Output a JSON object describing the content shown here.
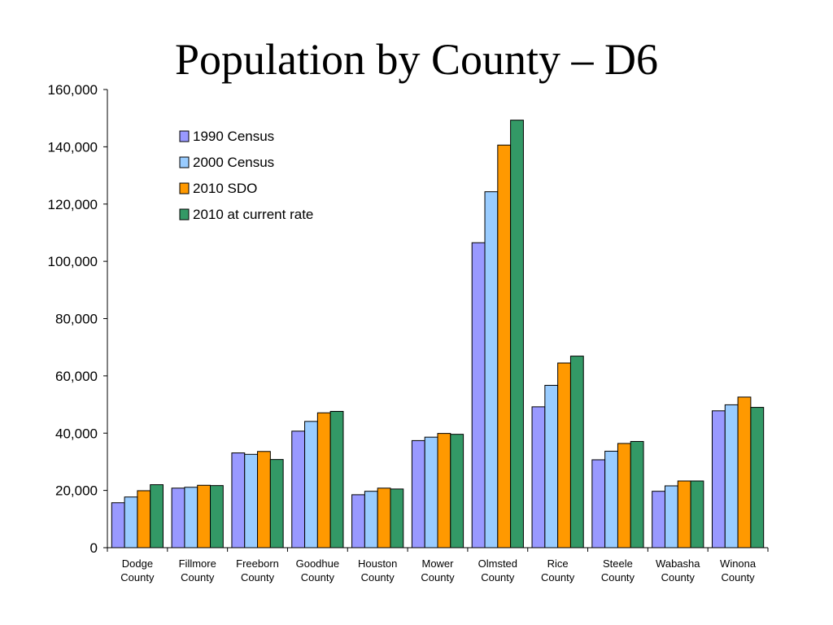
{
  "slide": {
    "title": "Population by County – D6"
  },
  "chart_data": {
    "type": "bar",
    "title": "Population by County – D6",
    "xlabel": "",
    "ylabel": "",
    "ylim": [
      0,
      160000
    ],
    "yticks": [
      "0",
      "20,000",
      "40,000",
      "60,000",
      "80,000",
      "100,000",
      "120,000",
      "140,000",
      "160,000"
    ],
    "ytick_values": [
      0,
      20000,
      40000,
      60000,
      80000,
      100000,
      120000,
      140000,
      160000
    ],
    "grid": false,
    "legend_position": "top-center",
    "categories": [
      [
        "Dodge",
        "County"
      ],
      [
        "Fillmore",
        "County"
      ],
      [
        "Freeborn",
        "County"
      ],
      [
        "Goodhue",
        "County"
      ],
      [
        "Houston",
        "County"
      ],
      [
        "Mower",
        "County"
      ],
      [
        "Olmsted",
        "County"
      ],
      [
        "Rice",
        "County"
      ],
      [
        "Steele",
        "County"
      ],
      [
        "Wabasha",
        "County"
      ],
      [
        "Winona",
        "County"
      ]
    ],
    "series": [
      {
        "name": "1990 Census",
        "color": "#9999ff",
        "values": [
          15700,
          20800,
          33100,
          40700,
          18500,
          37400,
          106500,
          49200,
          30700,
          19700,
          47800
        ]
      },
      {
        "name": "2000 Census",
        "color": "#99ccff",
        "values": [
          17700,
          21100,
          32600,
          44100,
          19700,
          38600,
          124300,
          56700,
          33700,
          21600,
          49900
        ]
      },
      {
        "name": "2010 SDO",
        "color": "#ff9900",
        "values": [
          19900,
          21800,
          33600,
          47100,
          20800,
          39900,
          140600,
          64500,
          36400,
          23300,
          52600
        ]
      },
      {
        "name": "2010 at current rate",
        "color": "#339966",
        "values": [
          22000,
          21700,
          30800,
          47600,
          20500,
          39600,
          149300,
          66900,
          37100,
          23300,
          49000
        ]
      }
    ]
  }
}
